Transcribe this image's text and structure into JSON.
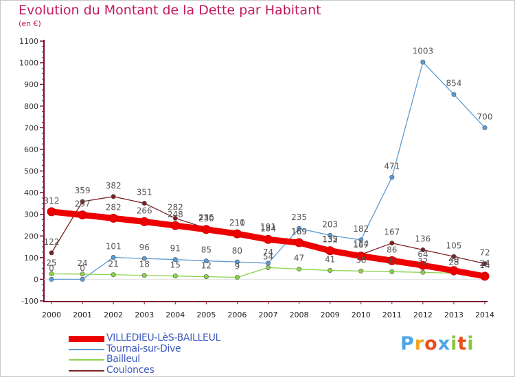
{
  "title": "Evolution du Montant de la Dette par Habitant",
  "unit_label": "(en €)",
  "logo_text": "Proxiti",
  "chart_data": {
    "type": "line",
    "title": "Evolution du Montant de la Dette par Habitant",
    "subtitle": "(en €)",
    "x": [
      2000,
      2001,
      2002,
      2003,
      2004,
      2005,
      2006,
      2007,
      2008,
      2009,
      2010,
      2011,
      2012,
      2013,
      2014
    ],
    "ylim": [
      -100,
      1100
    ],
    "yticks": [
      -100,
      0,
      100,
      200,
      300,
      400,
      500,
      600,
      700,
      800,
      900,
      1000,
      1100
    ],
    "grid": false,
    "legend_position": "bottom-left",
    "series": [
      {
        "name": "VILLEDIEU-LèS-BAILLEUL",
        "color": "#ee0000",
        "values": [
          312,
          297,
          282,
          266,
          248,
          230,
          210,
          184,
          169,
          132,
          107,
          86,
          64,
          40,
          14
        ],
        "labels": [
          "312",
          "297",
          "282",
          "266",
          "248",
          "230",
          "210",
          "184",
          "169",
          "132",
          "107",
          "86",
          "64",
          "40",
          "14"
        ]
      },
      {
        "name": "Tournai-sur-Dive",
        "color": "#5b9bd5",
        "values": [
          0,
          0,
          101,
          96,
          91,
          85,
          80,
          74,
          235,
          203,
          182,
          471,
          1003,
          854,
          700
        ],
        "labels": [
          "0",
          "0",
          "101",
          "96",
          "91",
          "85",
          "80",
          "74",
          "235",
          "203",
          "182",
          "471",
          "1003",
          "854",
          "700"
        ]
      },
      {
        "name": "Bailleul",
        "color": "#8cd24a",
        "values": [
          25,
          24,
          21,
          18,
          15,
          12,
          9,
          54,
          47,
          41,
          38,
          35,
          32,
          28,
          24
        ],
        "labels": [
          "25",
          "24",
          "21",
          "18",
          "15",
          "12",
          "9",
          "54",
          "47",
          "41",
          "38",
          "35",
          "32",
          "28",
          "24"
        ]
      },
      {
        "name": "Coulonces",
        "color": "#7b2020",
        "values": [
          122,
          359,
          382,
          351,
          282,
          236,
          211,
          191,
          169,
          135,
          114,
          167,
          136,
          105,
          72
        ],
        "labels": [
          "122",
          "359",
          "382",
          "351",
          "282",
          "236",
          "211",
          "191",
          "169",
          "135",
          "114",
          "167",
          "136",
          "105",
          "72"
        ]
      }
    ]
  }
}
